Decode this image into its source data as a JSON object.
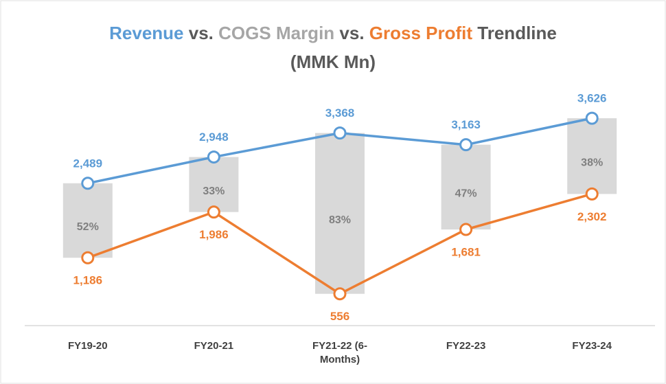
{
  "chart_data": {
    "type": "line",
    "title_parts": [
      "Revenue",
      "vs.",
      "COGS Margin",
      "vs.",
      "Gross Profit",
      "Trendline",
      "(MMK Mn)"
    ],
    "categories": [
      "FY19-20",
      "FY20-21",
      "FY21-22 (6-Months)",
      "FY22-23",
      "FY23-24"
    ],
    "series": [
      {
        "name": "Revenue",
        "color": "#5b9bd5",
        "values": [
          2489,
          2948,
          3368,
          3163,
          3626
        ],
        "value_labels": [
          "2,489",
          "2,948",
          "3,368",
          "3,163",
          "3,626"
        ]
      },
      {
        "name": "COGS Margin",
        "color": "#d9d9d9",
        "label_color": "#7f7f7f",
        "values": [
          52,
          33,
          83,
          47,
          38
        ],
        "value_labels": [
          "52%",
          "33%",
          "83%",
          "47%",
          "38%"
        ]
      },
      {
        "name": "Gross Profit",
        "color": "#ed7d31",
        "values": [
          1186,
          1986,
          556,
          1681,
          2302
        ],
        "value_labels": [
          "1,186",
          "1,986",
          "556",
          "1,681",
          "2,302"
        ]
      }
    ],
    "ylim": [
      0,
      4000
    ]
  }
}
